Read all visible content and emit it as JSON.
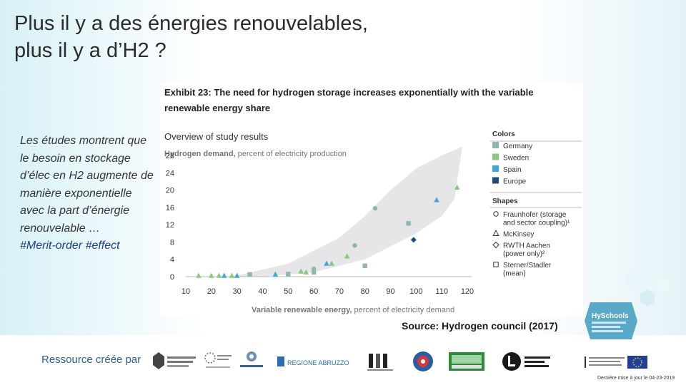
{
  "title_lines": [
    "Plus il y a des énergies renouvelables,",
    "plus il y a d’H2 ?"
  ],
  "side_text": "Les études montrent que le besoin en stockage d’élec en H2 augmente de manière exponentielle avec la part d’énergie renouvelable …",
  "side_tags": "#Merit-order #effect",
  "source": "Source: Hydrogen council (2017)",
  "ressource_label": "Ressource créée par",
  "footer_date": "Dernière mise à jour le 04-23-2019",
  "colors": {
    "germany": "#8fb5b0",
    "sweden": "#8dc67f",
    "spain": "#3fa6dc",
    "europe": "#1e4d78",
    "band": "#e6e6e8"
  },
  "chart_data": {
    "type": "scatter",
    "exhibit_title_lines": [
      "Exhibit 23: The need for hydrogen storage increases exponentially with the variable",
      "renewable energy share"
    ],
    "subtitle": "Overview of study results",
    "ylabel_bold": "Hydrogen demand,",
    "ylabel_rest": " percent of electricity production",
    "xlabel_bold": "Variable renewable energy,",
    "xlabel_rest": " percent of electricity demand",
    "x_ticks": [
      10,
      20,
      30,
      40,
      50,
      60,
      70,
      80,
      90,
      100,
      110,
      120
    ],
    "y_ticks": [
      0,
      4,
      8,
      12,
      16,
      20,
      24,
      28
    ],
    "xlim": [
      10,
      120
    ],
    "ylim": [
      0,
      30
    ],
    "band_upper": [
      [
        28,
        0
      ],
      [
        50,
        3
      ],
      [
        60,
        6
      ],
      [
        70,
        9
      ],
      [
        80,
        14
      ],
      [
        90,
        20
      ],
      [
        100,
        25
      ],
      [
        110,
        28
      ],
      [
        118,
        30
      ]
    ],
    "band_lower": [
      [
        40,
        0
      ],
      [
        60,
        1
      ],
      [
        80,
        4
      ],
      [
        90,
        7
      ],
      [
        100,
        10
      ],
      [
        110,
        14
      ],
      [
        115,
        18
      ]
    ],
    "colors_legend_title": "Colors",
    "colors_legend": [
      {
        "name": "Germany",
        "color": "#8fb5b0"
      },
      {
        "name": "Sweden",
        "color": "#8dc67f"
      },
      {
        "name": "Spain",
        "color": "#3fa6dc"
      },
      {
        "name": "Europe",
        "color": "#1e4d78"
      }
    ],
    "shapes_legend_title": "Shapes",
    "shapes_legend": [
      {
        "shape": "circle",
        "lines": [
          "Fraunhofer (storage",
          "and sector coupling)¹"
        ]
      },
      {
        "shape": "triangle",
        "lines": [
          "McKinsey"
        ]
      },
      {
        "shape": "diamond",
        "lines": [
          "RWTH Aachen",
          "(power only)²"
        ]
      },
      {
        "shape": "square",
        "lines": [
          "Sterner/Stadler",
          "(mean)"
        ]
      }
    ],
    "points": [
      {
        "x": 15,
        "y": 0.2,
        "shape": "triangle",
        "color": "#8dc67f"
      },
      {
        "x": 20,
        "y": 0.2,
        "shape": "triangle",
        "color": "#8dc67f"
      },
      {
        "x": 23,
        "y": 0.2,
        "shape": "triangle",
        "color": "#8dc67f"
      },
      {
        "x": 25,
        "y": 0.2,
        "shape": "triangle",
        "color": "#3fa6dc"
      },
      {
        "x": 28,
        "y": 0.2,
        "shape": "triangle",
        "color": "#8dc67f"
      },
      {
        "x": 30,
        "y": 0.2,
        "shape": "triangle",
        "color": "#3fa6dc"
      },
      {
        "x": 35,
        "y": 0.5,
        "shape": "square",
        "color": "#8fb5b0"
      },
      {
        "x": 45,
        "y": 0.5,
        "shape": "triangle",
        "color": "#3fa6dc"
      },
      {
        "x": 50,
        "y": 0.6,
        "shape": "square",
        "color": "#8fb5b0"
      },
      {
        "x": 55,
        "y": 1.2,
        "shape": "triangle",
        "color": "#8dc67f"
      },
      {
        "x": 57,
        "y": 1.0,
        "shape": "triangle",
        "color": "#8dc67f"
      },
      {
        "x": 60,
        "y": 1.8,
        "shape": "circle",
        "color": "#8fb5b0"
      },
      {
        "x": 60,
        "y": 1.0,
        "shape": "square",
        "color": "#8fb5b0"
      },
      {
        "x": 65,
        "y": 3.0,
        "shape": "triangle",
        "color": "#3fa6dc"
      },
      {
        "x": 67,
        "y": 3.0,
        "shape": "triangle",
        "color": "#8dc67f"
      },
      {
        "x": 73,
        "y": 4.7,
        "shape": "triangle",
        "color": "#8dc67f"
      },
      {
        "x": 76,
        "y": 7.2,
        "shape": "circle",
        "color": "#8fb5b0"
      },
      {
        "x": 80,
        "y": 2.5,
        "shape": "square",
        "color": "#8fb5b0"
      },
      {
        "x": 84,
        "y": 15.8,
        "shape": "circle",
        "color": "#8fb5b0"
      },
      {
        "x": 97,
        "y": 12.3,
        "shape": "square",
        "color": "#8fb5b0"
      },
      {
        "x": 99,
        "y": 8.5,
        "shape": "diamond",
        "color": "#1e4d78"
      },
      {
        "x": 108,
        "y": 17.7,
        "shape": "triangle",
        "color": "#3fa6dc"
      },
      {
        "x": 116,
        "y": 20.6,
        "shape": "triangle",
        "color": "#8dc67f"
      }
    ]
  }
}
